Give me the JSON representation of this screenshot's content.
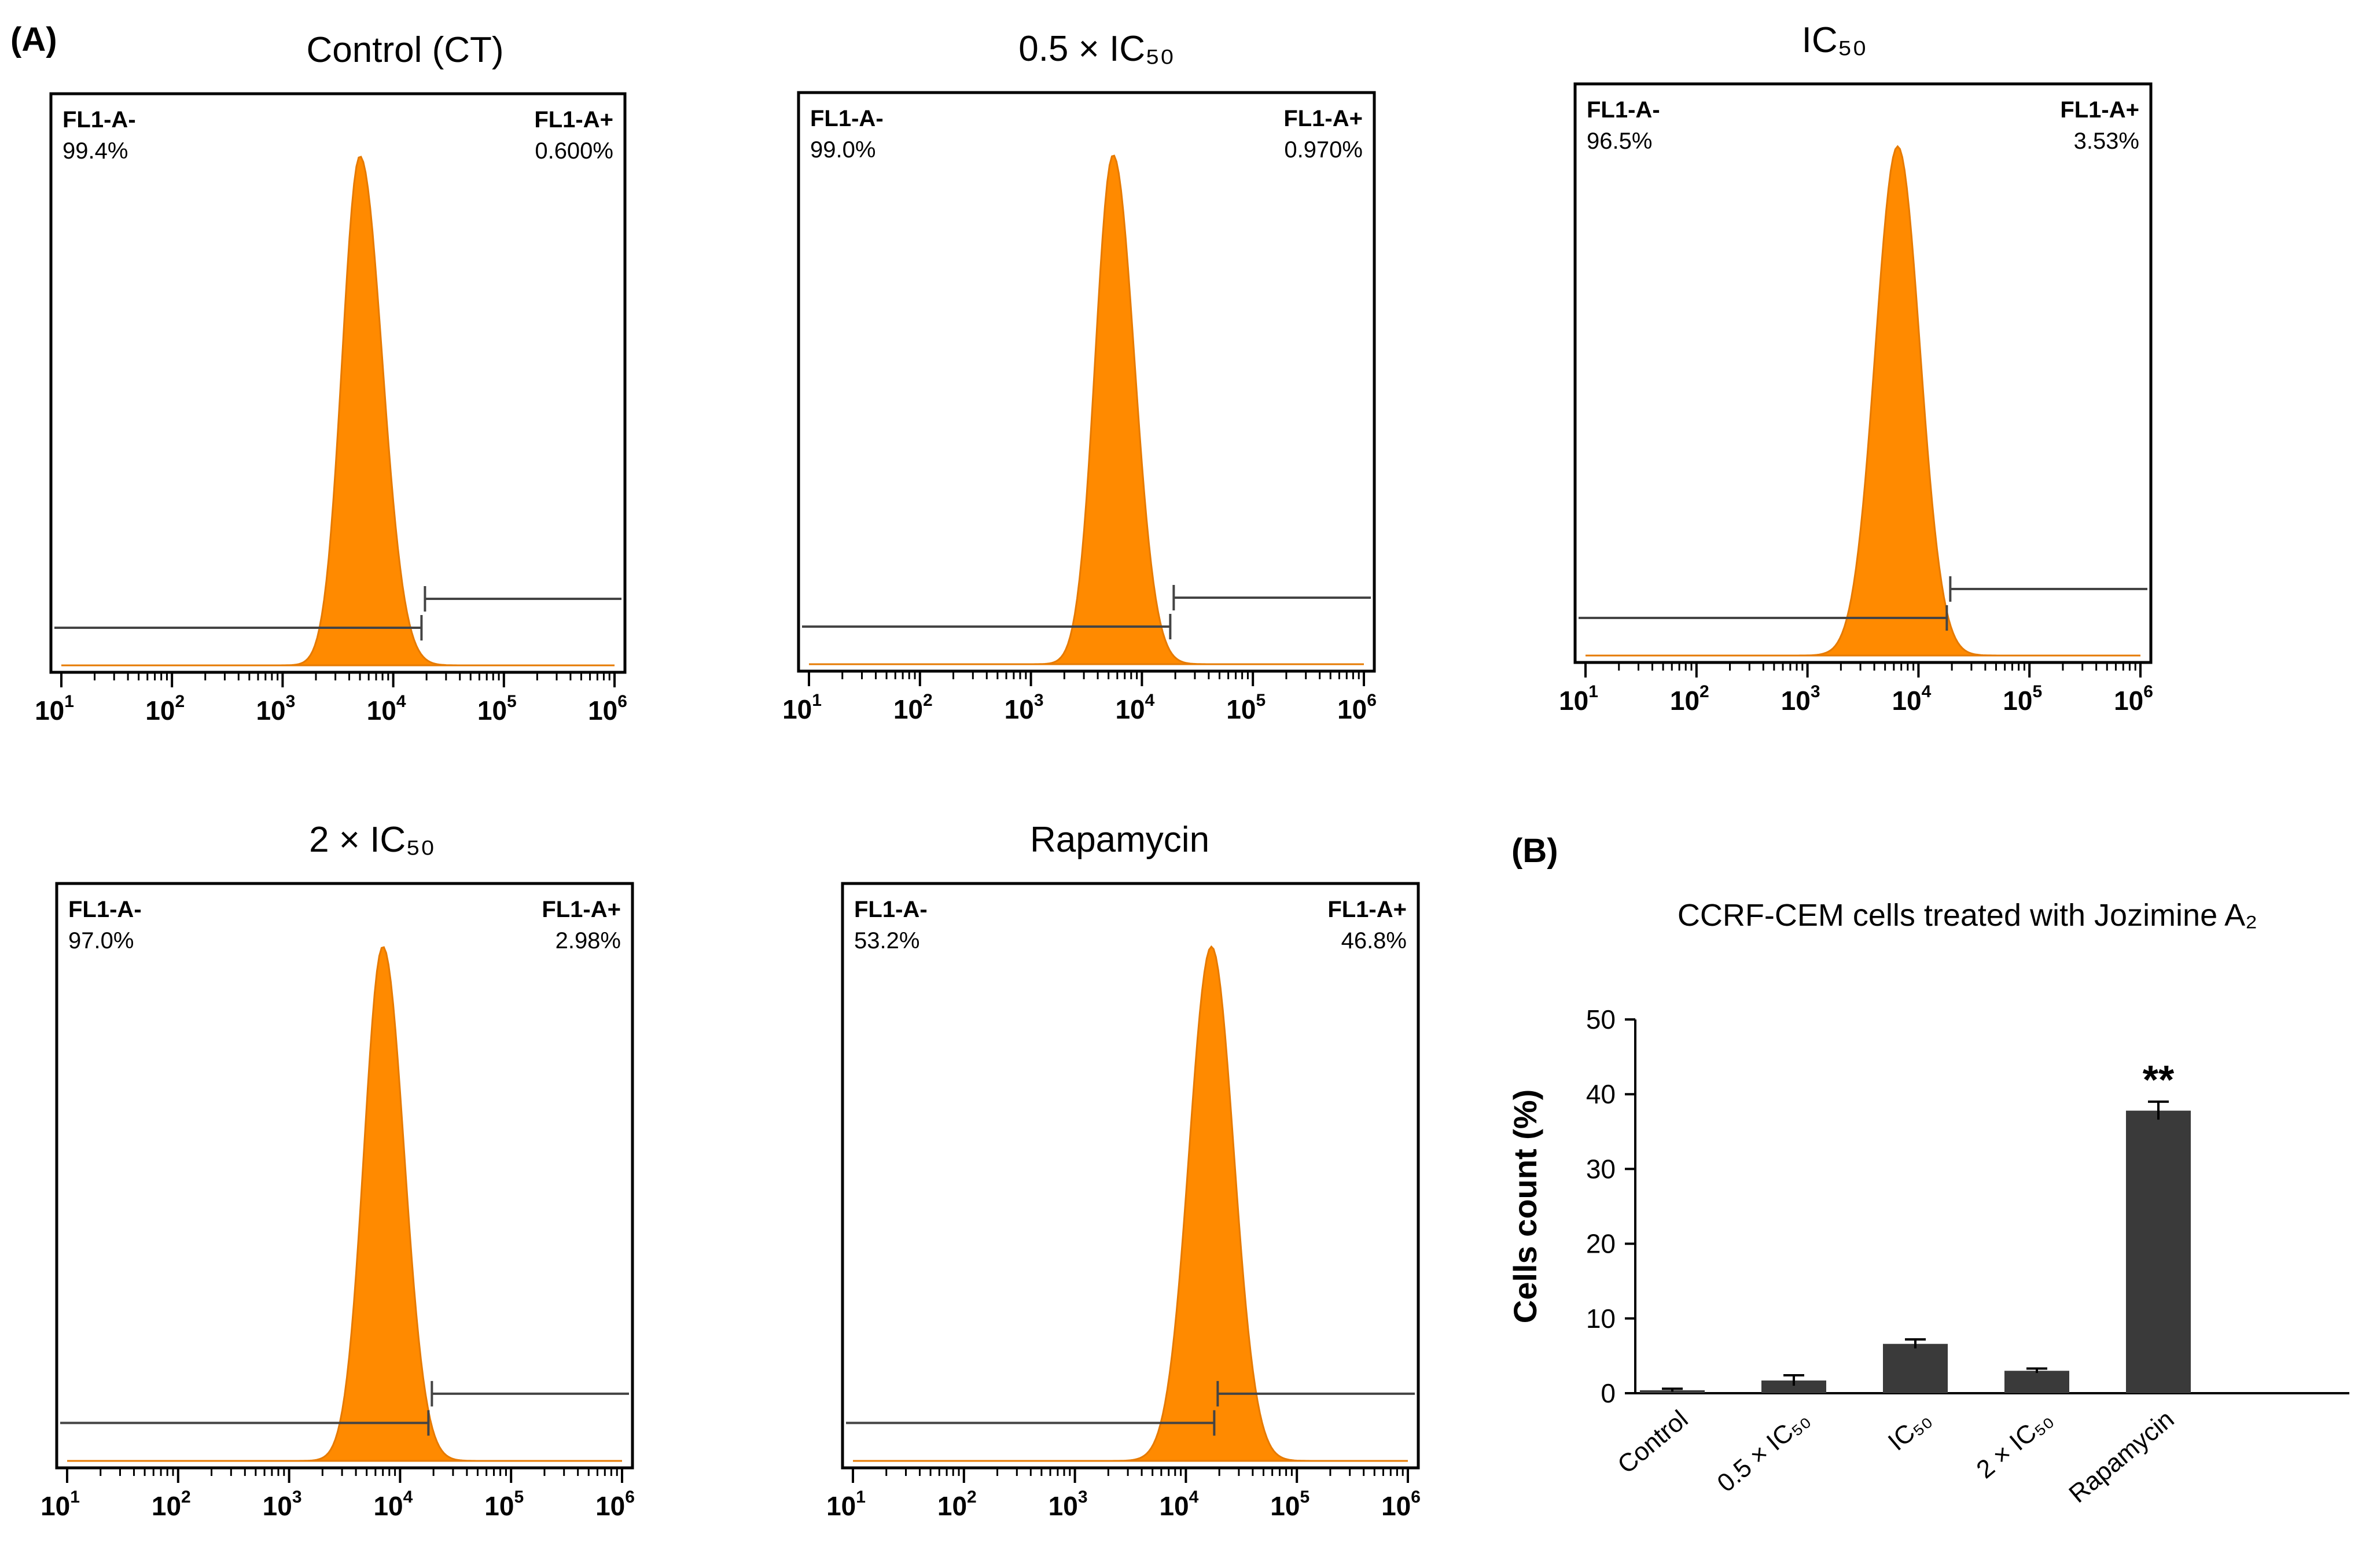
{
  "panel_a_label": "(A)",
  "panel_b_label": "(B)",
  "colors": {
    "histogram_fill": "#ff8a00",
    "histogram_stroke": "#e67a00",
    "bar_fill": "#3a3a3a",
    "axis": "#000000",
    "gate_line": "#444444"
  },
  "chart_data": [
    {
      "type": "area",
      "title": "Control (CT)",
      "x_scale": "log",
      "x_ticks": [
        10,
        100,
        1000,
        10000,
        100000,
        1000000
      ],
      "xlim": [
        10,
        1000000
      ],
      "peak_x": 5000,
      "spread_left": 0.16,
      "spread_right": 0.2,
      "gate_boundary": 18000,
      "gates": [
        {
          "name": "FL1-A-",
          "percent": "99.4%"
        },
        {
          "name": "FL1-A+",
          "percent": "0.600%"
        }
      ]
    },
    {
      "type": "area",
      "title": "0.5 × IC₅₀",
      "x_scale": "log",
      "x_ticks": [
        10,
        100,
        1000,
        10000,
        100000,
        1000000
      ],
      "xlim": [
        10,
        1000000
      ],
      "peak_x": 5500,
      "spread_left": 0.16,
      "spread_right": 0.19,
      "gate_boundary": 18000,
      "gates": [
        {
          "name": "FL1-A-",
          "percent": "99.0%"
        },
        {
          "name": "FL1-A+",
          "percent": "0.970%"
        }
      ]
    },
    {
      "type": "area",
      "title": "IC₅₀",
      "x_scale": "log",
      "x_ticks": [
        10,
        100,
        1000,
        10000,
        100000,
        1000000
      ],
      "xlim": [
        10,
        1000000
      ],
      "peak_x": 6500,
      "spread_left": 0.2,
      "spread_right": 0.2,
      "gate_boundary": 18000,
      "gates": [
        {
          "name": "FL1-A-",
          "percent": "96.5%"
        },
        {
          "name": "FL1-A+",
          "percent": "3.53%"
        }
      ]
    },
    {
      "type": "area",
      "title": "2 × IC₅₀",
      "x_scale": "log",
      "x_ticks": [
        10,
        100,
        1000,
        10000,
        100000,
        1000000
      ],
      "xlim": [
        10,
        1000000
      ],
      "peak_x": 7000,
      "spread_left": 0.17,
      "spread_right": 0.19,
      "gate_boundary": 18000,
      "gates": [
        {
          "name": "FL1-A-",
          "percent": "97.0%"
        },
        {
          "name": "FL1-A+",
          "percent": "2.98%"
        }
      ]
    },
    {
      "type": "area",
      "title": "Rapamycin",
      "x_scale": "log",
      "x_ticks": [
        10,
        100,
        1000,
        10000,
        100000,
        1000000
      ],
      "xlim": [
        10,
        1000000
      ],
      "peak_x": 17000,
      "spread_left": 0.2,
      "spread_right": 0.2,
      "gate_boundary": 18000,
      "gates": [
        {
          "name": "FL1-A-",
          "percent": "53.2%"
        },
        {
          "name": "FL1-A+",
          "percent": "46.8%"
        }
      ]
    },
    {
      "type": "bar",
      "title": "CCRF-CEM cells treated with Jozimine A₂",
      "ylabel": "Cells count (%)",
      "xlabel": "",
      "categories": [
        "Control",
        "0.5 × IC₅₀",
        "IC₅₀",
        "2 × IC₅₀",
        "Rapamycin"
      ],
      "values": [
        0.4,
        1.7,
        6.6,
        3.0,
        37.8
      ],
      "errors": [
        0.2,
        0.7,
        0.6,
        0.3,
        1.2
      ],
      "annotations": [
        "",
        "",
        "",
        "",
        "**"
      ],
      "ylim": [
        0,
        50
      ],
      "yticks": [
        0,
        10,
        20,
        30,
        40,
        50
      ],
      "grid": false
    }
  ]
}
